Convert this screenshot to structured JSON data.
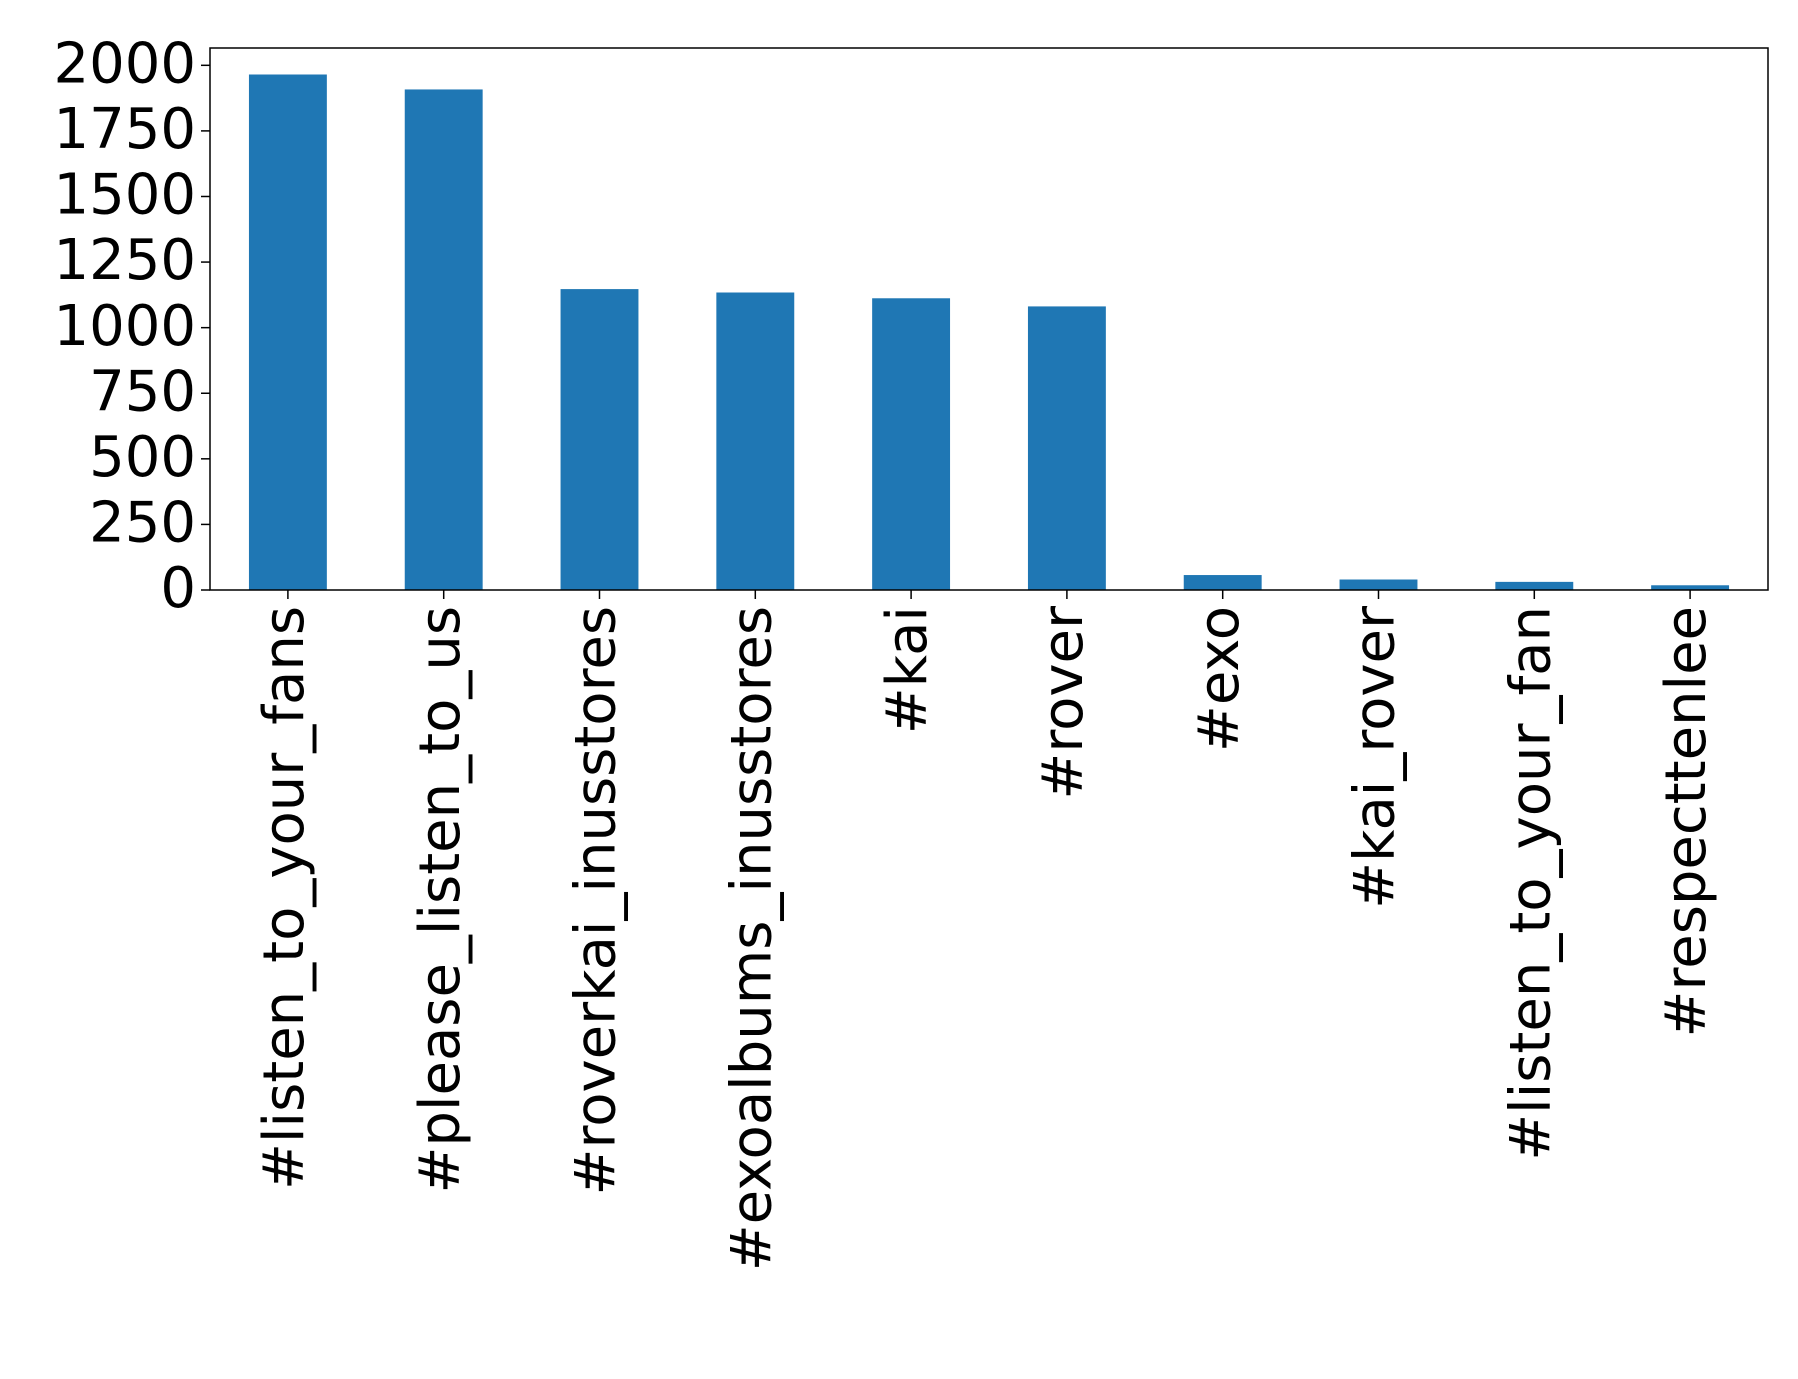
{
  "chart_data": {
    "type": "bar",
    "categories": [
      "#listen_to_your_fans",
      "#please_listen_to_us",
      "#roverkai_inusstores",
      "#exoalbums_inusstores",
      "#kai",
      "#rover",
      "#exo",
      "#kai_rover",
      "#listen_to_your_fan",
      "#respecttenlee"
    ],
    "values": [
      1965,
      1908,
      1147,
      1134,
      1112,
      1081,
      57,
      40,
      31,
      18
    ],
    "color": "#1f77b4",
    "ylim": [
      0,
      2066
    ],
    "yticks": [
      0,
      250,
      500,
      750,
      1000,
      1250,
      1500,
      1750,
      2000
    ],
    "grid": false
  }
}
